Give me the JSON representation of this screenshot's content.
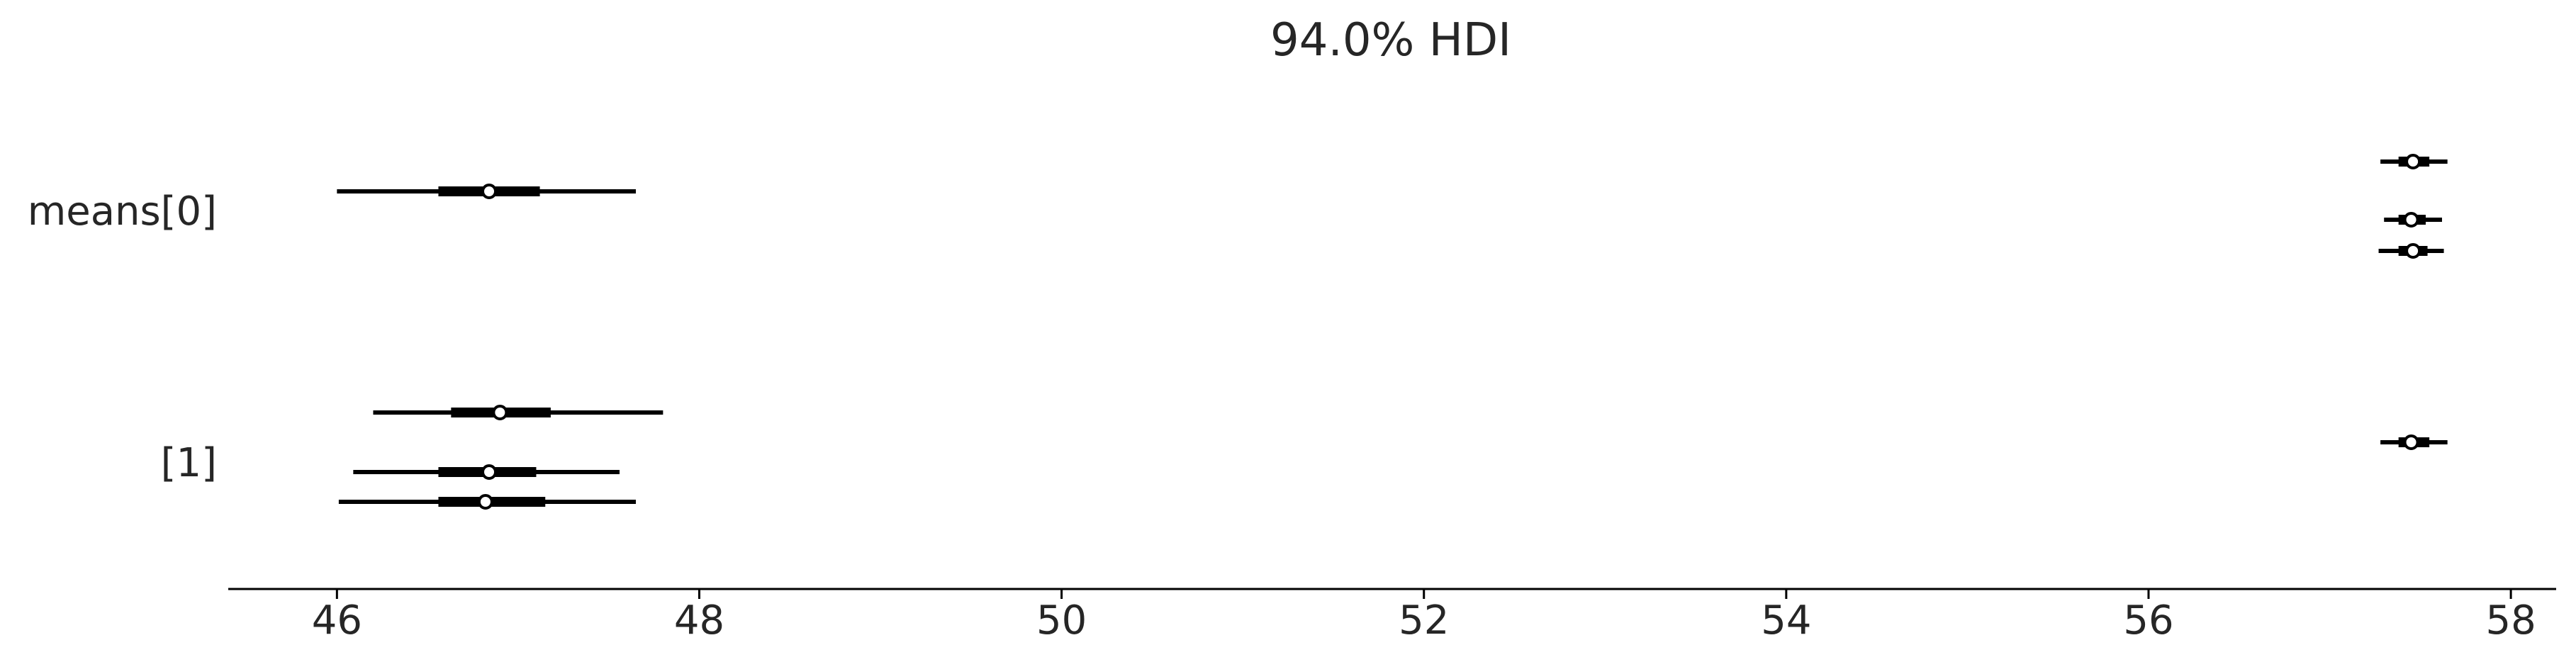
{
  "chart_data": {
    "type": "forest",
    "title": "94.0% HDI",
    "xlabel": "",
    "ylabel": "",
    "xlim": [
      45.4,
      58.25
    ],
    "xticks": [
      46,
      48,
      50,
      52,
      54,
      56,
      58
    ],
    "xtick_labels": [
      "46",
      "48",
      "50",
      "52",
      "54",
      "56",
      "58"
    ],
    "groups": [
      {
        "label": "means[0]",
        "chains": [
          {
            "hdi": [
              46.0,
              47.65
            ],
            "iqr": [
              46.56,
              47.12
            ],
            "median": 46.84
          },
          {
            "hdi": [
              57.28,
              57.65
            ],
            "iqr": [
              57.38,
              57.55
            ],
            "median": 57.46
          }
        ]
      },
      {
        "label": "means[0]",
        "chains": [
          {
            "hdi": [
              57.3,
              57.62
            ],
            "iqr": [
              57.38,
              57.53
            ],
            "median": 57.45
          }
        ]
      },
      {
        "label": "means[0]",
        "chains": [
          {
            "hdi": [
              57.27,
              57.63
            ],
            "iqr": [
              57.38,
              57.54
            ],
            "median": 57.46
          }
        ]
      },
      {
        "label": "[1]",
        "chains": [
          {
            "hdi": [
              46.2,
              47.8
            ],
            "iqr": [
              46.63,
              47.18
            ],
            "median": 46.9
          }
        ]
      },
      {
        "label": "[1]",
        "chains": [
          {
            "hdi": [
              57.28,
              57.65
            ],
            "iqr": [
              57.38,
              57.55
            ],
            "median": 57.45
          }
        ]
      },
      {
        "label": "[1]",
        "chains": [
          {
            "hdi": [
              46.09,
              47.56
            ],
            "iqr": [
              46.56,
              47.1
            ],
            "median": 46.84
          }
        ]
      },
      {
        "label": "[1]",
        "chains": [
          {
            "hdi": [
              46.01,
              47.65
            ],
            "iqr": [
              46.56,
              47.15
            ],
            "median": 46.82
          }
        ]
      }
    ],
    "y_labels": [
      "means[0]",
      "[1]"
    ],
    "colors": {
      "line": "#000000",
      "marker_fill": "#ffffff",
      "text": "#262626"
    },
    "grid": false,
    "legend": "none"
  }
}
